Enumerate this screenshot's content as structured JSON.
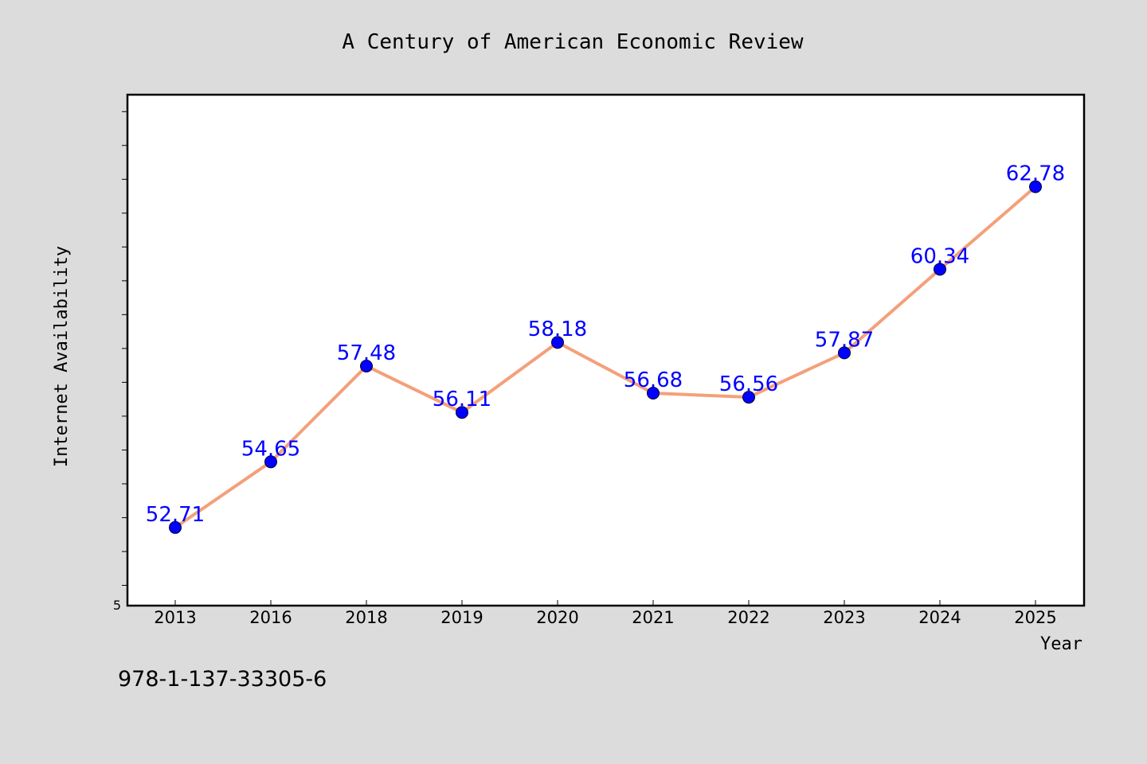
{
  "footer_text": "978-1-137-33305-6",
  "colors": {
    "background": "#dcdcdc",
    "plot_background": "#ffffff",
    "line": "#f4a07a",
    "marker": "#0000ff",
    "data_label": "#0000ff"
  },
  "chart_data": {
    "type": "line",
    "title": "A Century of American Economic Review",
    "xlabel": "Year",
    "ylabel": "Internet Availability",
    "categories": [
      "2013",
      "2016",
      "2018",
      "2019",
      "2020",
      "2021",
      "2022",
      "2023",
      "2024",
      "2025"
    ],
    "series": [
      {
        "values": [
          52.71,
          54.65,
          57.48,
          56.11,
          58.18,
          56.68,
          56.56,
          57.87,
          60.34,
          62.78
        ],
        "labels": [
          "52.71",
          "54.65",
          "57.48",
          "56.11",
          "58.18",
          "56.68",
          "56.56",
          "57.87",
          "60.34",
          "62.78"
        ],
        "marker": "circle"
      }
    ],
    "ylim": [
      50.4,
      65.5
    ],
    "y_tick_values": [
      51.0,
      52.0,
      53.0,
      54.0,
      55.0,
      56.0,
      57.0,
      58.0,
      59.0,
      60.0,
      61.0,
      62.0,
      63.0,
      64.0,
      65.0
    ],
    "y_tick_labels_shown": [
      "5"
    ],
    "grid": false,
    "legend": "none"
  }
}
